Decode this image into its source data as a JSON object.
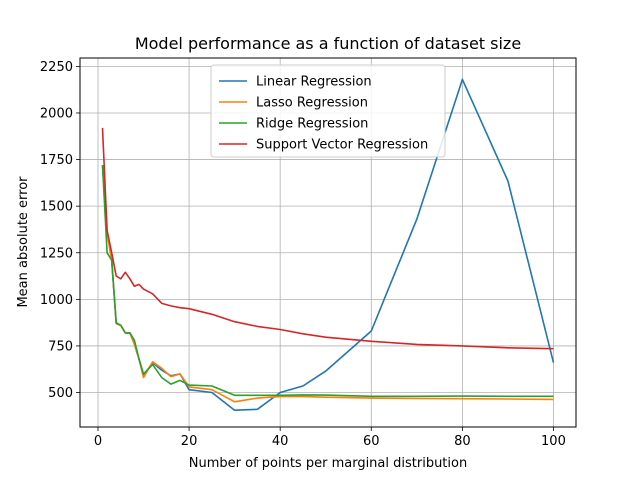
{
  "chart_data": {
    "type": "line",
    "title": "Model performance as a function of dataset size",
    "xlabel": "Number of points per marginal distribution",
    "ylabel": "Mean absolute error",
    "xlim": [
      -3.95,
      104.95
    ],
    "ylim": [
      315,
      2295
    ],
    "xticks": [
      0,
      20,
      40,
      60,
      80,
      100
    ],
    "yticks": [
      500,
      750,
      1000,
      1250,
      1500,
      1750,
      2000,
      2250
    ],
    "grid": true,
    "legend_position": "upper center",
    "series": [
      {
        "name": "Linear Regression",
        "color": "#1f77b4",
        "x": [
          1,
          2,
          3,
          4,
          5,
          6,
          7,
          8,
          9,
          10,
          12,
          14,
          16,
          18,
          20,
          25,
          30,
          35,
          40,
          45,
          50,
          60,
          70,
          80,
          90,
          100
        ],
        "y": [
          1720,
          1360,
          1210,
          870,
          860,
          820,
          820,
          760,
          680,
          590,
          660,
          620,
          590,
          600,
          515,
          500,
          405,
          410,
          500,
          535,
          615,
          830,
          1430,
          2180,
          1635,
          660
        ]
      },
      {
        "name": "Lasso Regression",
        "color": "#ff7f0e",
        "x": [
          1,
          2,
          3,
          4,
          5,
          6,
          7,
          8,
          9,
          10,
          12,
          14,
          16,
          18,
          20,
          25,
          30,
          35,
          40,
          45,
          50,
          60,
          70,
          80,
          90,
          100
        ],
        "y": [
          1720,
          1360,
          1210,
          870,
          860,
          820,
          820,
          760,
          680,
          580,
          665,
          630,
          585,
          600,
          530,
          515,
          450,
          470,
          478,
          478,
          475,
          470,
          468,
          467,
          465,
          463
        ]
      },
      {
        "name": "Ridge Regression",
        "color": "#2ca02c",
        "x": [
          1,
          2,
          3,
          4,
          5,
          6,
          7,
          8,
          9,
          10,
          12,
          14,
          16,
          18,
          20,
          25,
          30,
          35,
          40,
          45,
          50,
          60,
          70,
          80,
          90,
          100
        ],
        "y": [
          1720,
          1250,
          1210,
          875,
          860,
          820,
          820,
          780,
          680,
          600,
          650,
          580,
          545,
          565,
          540,
          535,
          485,
          485,
          485,
          487,
          486,
          480,
          480,
          481,
          480,
          480
        ]
      },
      {
        "name": "Support Vector Regression",
        "color": "#d62728",
        "x": [
          1,
          2,
          3,
          4,
          5,
          6,
          7,
          8,
          9,
          10,
          12,
          14,
          16,
          18,
          20,
          25,
          30,
          35,
          40,
          45,
          50,
          60,
          70,
          80,
          90,
          100
        ],
        "y": [
          1920,
          1370,
          1250,
          1125,
          1110,
          1145,
          1110,
          1070,
          1080,
          1055,
          1030,
          978,
          965,
          955,
          950,
          920,
          880,
          855,
          838,
          815,
          797,
          775,
          758,
          750,
          740,
          735
        ]
      }
    ]
  }
}
